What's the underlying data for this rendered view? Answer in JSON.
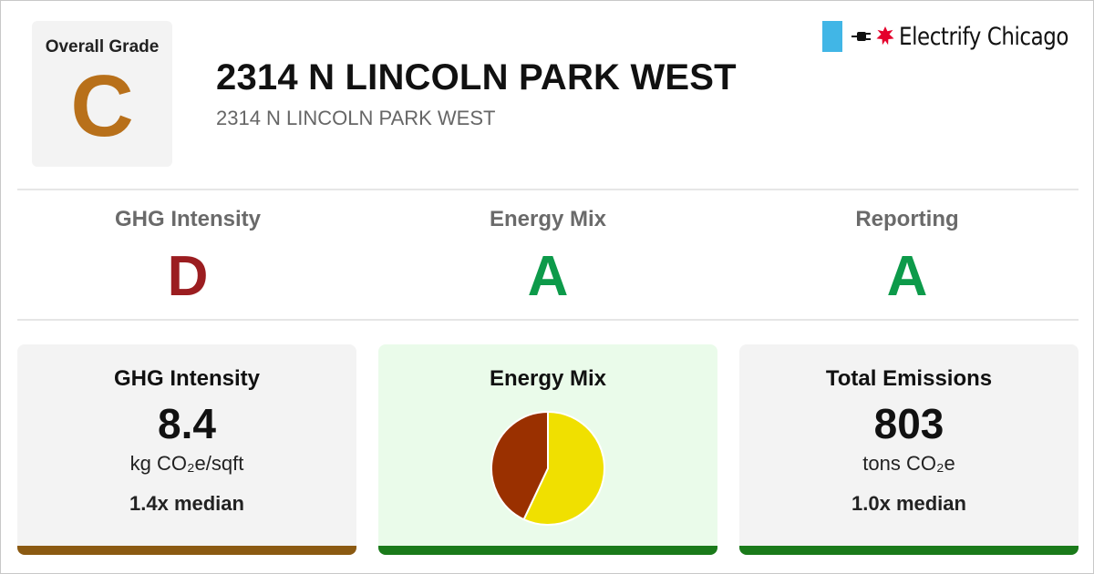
{
  "overall": {
    "label": "Overall Grade",
    "grade": "C",
    "color": "#b8701a"
  },
  "building": {
    "title": "2314 N LINCOLN PARK WEST",
    "address": "2314 N LINCOLN PARK WEST"
  },
  "logo": {
    "name": "Electrify Chicago",
    "flag_color": "#41b6e6",
    "star_color": "#e4002b",
    "icons": [
      "chicago-flag-icon",
      "plug-icon",
      "chicago-star-icon"
    ]
  },
  "grades": [
    {
      "label": "GHG Intensity",
      "grade": "D",
      "color": "#9b1d20"
    },
    {
      "label": "Energy Mix",
      "grade": "A",
      "color": "#0d9a4a"
    },
    {
      "label": "Reporting",
      "grade": "A",
      "color": "#0d9a4a"
    }
  ],
  "cards": {
    "ghg": {
      "title": "GHG Intensity",
      "value": "8.4",
      "unit": "kg CO₂e/sqft",
      "median": "1.4x median",
      "bar_color": "#8b5a12",
      "bg": "#f3f3f3"
    },
    "mix": {
      "title": "Energy Mix",
      "bar_color": "#1a7a1a",
      "bg": "#eafbea"
    },
    "emissions": {
      "title": "Total Emissions",
      "value": "803",
      "unit": "tons CO₂e",
      "median": "1.0x median",
      "bar_color": "#1a7a1a",
      "bg": "#f3f3f3"
    }
  },
  "chart_data": {
    "type": "pie",
    "title": "",
    "slices": [
      {
        "share": 0.57,
        "color": "#f0e000"
      },
      {
        "share": 0.43,
        "color": "#9a3000"
      }
    ]
  }
}
